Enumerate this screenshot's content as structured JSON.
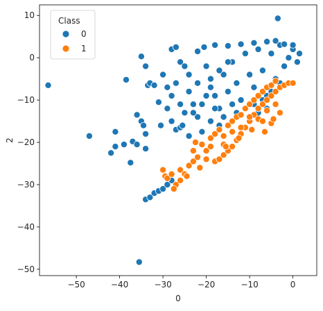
{
  "chart_data": {
    "type": "scatter",
    "title": "",
    "xlabel": "0",
    "ylabel": "2",
    "xlim": [
      -58.5,
      5.5
    ],
    "ylim": [
      -51.5,
      12.5
    ],
    "xticks": [
      -50,
      -40,
      -30,
      -20,
      -10,
      0
    ],
    "yticks": [
      10,
      0,
      -10,
      -20,
      -30,
      -40,
      -50
    ],
    "xtick_labels": [
      "−50",
      "−40",
      "−30",
      "−20",
      "−10",
      "0"
    ],
    "ytick_labels": [
      "10",
      "0",
      "−10",
      "−20",
      "−30",
      "−40",
      "−50"
    ],
    "grid": false,
    "legend": {
      "title": "Class",
      "placement": "top-left",
      "entries": [
        {
          "label": "0",
          "color": "#1f77b4"
        },
        {
          "label": "1",
          "color": "#ff7f0e"
        }
      ]
    },
    "series": [
      {
        "name": "0",
        "color": "#1f77b4",
        "points": [
          [
            -56.5,
            -6.5
          ],
          [
            -47,
            -18.5
          ],
          [
            -42,
            -22.5
          ],
          [
            -41,
            -17.5
          ],
          [
            -41,
            -21
          ],
          [
            -39,
            -20.5
          ],
          [
            -37.5,
            -24.8
          ],
          [
            -37,
            -19.8
          ],
          [
            -36,
            -20.5
          ],
          [
            -36,
            -13.5
          ],
          [
            -35,
            -15
          ],
          [
            -34.5,
            -16
          ],
          [
            -34,
            -18
          ],
          [
            -34,
            -21.5
          ],
          [
            -35,
            0.3
          ],
          [
            -33.5,
            -6.5
          ],
          [
            -33,
            -6
          ],
          [
            -35.5,
            -48.3
          ],
          [
            -34,
            -33.5
          ],
          [
            -33,
            -33
          ],
          [
            -32,
            -32
          ],
          [
            -31,
            -31.5
          ],
          [
            -30,
            -31
          ],
          [
            -29,
            -30
          ],
          [
            -28,
            -29
          ],
          [
            -38.5,
            -5.2
          ],
          [
            -34,
            -2
          ],
          [
            -32,
            -6.5
          ],
          [
            -31,
            -10.5
          ],
          [
            -30.5,
            -16
          ],
          [
            -29,
            -12
          ],
          [
            -28,
            -15
          ],
          [
            -27,
            -17
          ],
          [
            -26,
            -16.5
          ],
          [
            -28,
            2
          ],
          [
            -27,
            2.5
          ],
          [
            -26,
            -1
          ],
          [
            -25,
            -2
          ],
          [
            -25.5,
            -16
          ],
          [
            -24,
            -18.5
          ],
          [
            -27,
            -6
          ],
          [
            -24,
            -8
          ],
          [
            -22,
            -14
          ],
          [
            -21,
            -17.5
          ],
          [
            -23,
            -11
          ],
          [
            -20,
            -2
          ],
          [
            -19,
            -5
          ],
          [
            -18,
            -9
          ],
          [
            -17,
            -12
          ],
          [
            -16,
            -4
          ],
          [
            -15,
            -8
          ],
          [
            -14,
            -1
          ],
          [
            -13,
            -6
          ],
          [
            -12,
            -10
          ],
          [
            -11,
            1
          ],
          [
            -10,
            -4
          ],
          [
            -9,
            -7
          ],
          [
            -8,
            2
          ],
          [
            -7,
            -3
          ],
          [
            -6,
            -9
          ],
          [
            -5,
            1
          ],
          [
            -4,
            -5
          ],
          [
            -3,
            3
          ],
          [
            -2,
            -2
          ],
          [
            -1,
            0
          ],
          [
            0,
            2
          ],
          [
            1,
            -1
          ],
          [
            1.5,
            1
          ],
          [
            -3.5,
            9.3
          ],
          [
            -22,
            1.5
          ],
          [
            -20.5,
            2.5
          ],
          [
            -18,
            3
          ],
          [
            -15,
            2.8
          ],
          [
            -12,
            3.2
          ],
          [
            -9,
            3.5
          ],
          [
            -6,
            3.8
          ],
          [
            -4,
            4
          ],
          [
            -2,
            3.2
          ],
          [
            0,
            3
          ],
          [
            -24,
            -4
          ],
          [
            -22,
            -6
          ],
          [
            -20,
            -9
          ],
          [
            -18,
            -12
          ],
          [
            -16,
            -14
          ],
          [
            -14,
            -11
          ],
          [
            -19,
            -15
          ],
          [
            -17,
            -16
          ],
          [
            -13,
            -13
          ],
          [
            -11,
            -12
          ],
          [
            -9,
            -11
          ],
          [
            -7,
            -10
          ],
          [
            -5,
            -8
          ],
          [
            -3,
            -6
          ],
          [
            -8,
            -13
          ],
          [
            -6,
            -12
          ],
          [
            -30,
            -4
          ],
          [
            -29,
            -7
          ],
          [
            -28,
            -9
          ],
          [
            -26,
            -11
          ],
          [
            -25,
            -13
          ],
          [
            -23,
            -13
          ],
          [
            -21,
            -11
          ],
          [
            -19,
            -7
          ],
          [
            -17,
            -3
          ],
          [
            -15,
            -1
          ]
        ]
      },
      {
        "name": "1",
        "color": "#ff7f0e",
        "points": [
          [
            -30,
            -26.5
          ],
          [
            -29.5,
            -28
          ],
          [
            -29,
            -28.5
          ],
          [
            -28,
            -27.5
          ],
          [
            -27,
            -30
          ],
          [
            -26,
            -26.5
          ],
          [
            -25,
            -27.5
          ],
          [
            -24,
            -25.5
          ],
          [
            -23,
            -24.5
          ],
          [
            -22,
            -23.5
          ],
          [
            -23,
            -22
          ],
          [
            -22.5,
            -20
          ],
          [
            -21,
            -20.5
          ],
          [
            -20,
            -22
          ],
          [
            -19,
            -21
          ],
          [
            -18,
            -24.5
          ],
          [
            -17,
            -24
          ],
          [
            -16,
            -23
          ],
          [
            -15,
            -22
          ],
          [
            -14,
            -21
          ],
          [
            -13,
            -19.5
          ],
          [
            -12,
            -18
          ],
          [
            -11,
            -16.5
          ],
          [
            -10,
            -15
          ],
          [
            -9,
            -13.5
          ],
          [
            -8,
            -12
          ],
          [
            -7,
            -11
          ],
          [
            -6,
            -10
          ],
          [
            -5,
            -9
          ],
          [
            -4,
            -8
          ],
          [
            -3,
            -7
          ],
          [
            -2,
            -6.5
          ],
          [
            -1,
            -6
          ],
          [
            0,
            -6
          ],
          [
            -19,
            -19
          ],
          [
            -18,
            -18
          ],
          [
            -17,
            -17
          ],
          [
            -16,
            -18.5
          ],
          [
            -15,
            -16
          ],
          [
            -14,
            -15
          ],
          [
            -13,
            -14
          ],
          [
            -12,
            -13.5
          ],
          [
            -11,
            -12
          ],
          [
            -10,
            -11
          ],
          [
            -9,
            -10
          ],
          [
            -8,
            -9
          ],
          [
            -7,
            -8
          ],
          [
            -6,
            -7
          ],
          [
            -5,
            -6.5
          ],
          [
            -4,
            -5.5
          ],
          [
            -16,
            -20.5
          ],
          [
            -14,
            -17.5
          ],
          [
            -12,
            -16.5
          ],
          [
            -10,
            -14
          ],
          [
            -8,
            -14.5
          ],
          [
            -6,
            -12.5
          ],
          [
            -4,
            -11
          ],
          [
            -3,
            -13
          ],
          [
            -5,
            -15.5
          ],
          [
            -27.5,
            -31
          ],
          [
            -26,
            -29
          ],
          [
            -24.5,
            -28
          ],
          [
            -21.5,
            -26
          ],
          [
            -20,
            -24
          ],
          [
            -15.5,
            -21
          ],
          [
            -12.5,
            -19
          ],
          [
            -9.5,
            -17
          ],
          [
            -7,
            -15
          ],
          [
            -6.5,
            -17.5
          ],
          [
            -4.5,
            -14.5
          ]
        ]
      }
    ]
  }
}
